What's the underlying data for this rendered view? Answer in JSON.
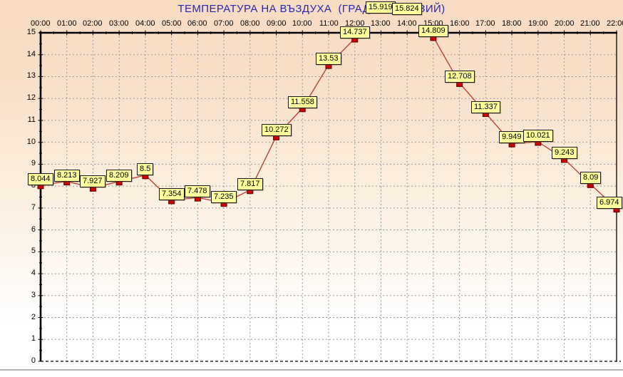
{
  "chart_data": {
    "type": "line",
    "title": "ТЕМПЕРАТУРА НА ВЪЗДУХА  (ГРАДУСА ЦЕЛЗИЙ)",
    "x_labels": [
      "00:00",
      "01:00",
      "02:00",
      "03:00",
      "04:00",
      "05:00",
      "06:00",
      "07:00",
      "08:00",
      "09:00",
      "10:00",
      "11:00",
      "12:00",
      "13:00",
      "14:00",
      "15:00",
      "16:00",
      "17:00",
      "18:00",
      "19:00",
      "20:00",
      "21:00",
      "22:00"
    ],
    "values": [
      8.044,
      8.213,
      7.927,
      8.209,
      8.5,
      7.354,
      7.478,
      7.235,
      7.817,
      10.272,
      11.558,
      13.53,
      14.737,
      15.919,
      15.824,
      14.809,
      12.708,
      11.337,
      9.949,
      10.021,
      9.243,
      8.09,
      6.974
    ],
    "point_labels": [
      "8.044",
      "8.213",
      "7.927",
      "8.209",
      "8.5",
      "7.354",
      "7.478",
      "7.235",
      "7.817",
      "10.272",
      "11.558",
      "13.53",
      "14.737",
      "15.919",
      "15.824",
      "14.809",
      "12.708",
      "11.337",
      "9.949",
      "10.021",
      "9.243",
      "8.09",
      "6.974"
    ],
    "y_tick_labels": [
      "0",
      "1",
      "2",
      "3",
      "4",
      "5",
      "6",
      "7",
      "8",
      "9",
      "10",
      "11",
      "12",
      "13",
      "14",
      "15"
    ],
    "ylim": [
      0,
      15
    ],
    "x_axis_position": "top",
    "grid": true,
    "legend": "none",
    "colors": {
      "title": "#2626b2",
      "line": "#c04038",
      "marker_fill": "#cc0000",
      "marker_border": "#5f0000",
      "label_bg": "#ffff9c",
      "label_border": "#1a1a1a",
      "grid": "#9a9a9a",
      "axis": "#000000",
      "bg_top": "#f8dcc2",
      "bg_bottom": "#ffffff"
    }
  }
}
